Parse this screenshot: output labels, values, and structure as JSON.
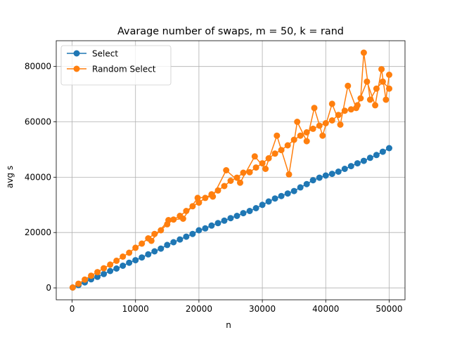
{
  "chart_data": {
    "type": "line",
    "title": "Avarage number of swaps, m = 50, k = rand",
    "xlabel": "n",
    "ylabel": "avg s",
    "xlim": [
      -2500,
      52500
    ],
    "ylim": [
      -4300,
      89300
    ],
    "grid": true,
    "legend_placement": "top-left",
    "x_ticks": [
      0,
      10000,
      20000,
      30000,
      40000,
      50000
    ],
    "x_tick_labels": [
      "0",
      "10000",
      "20000",
      "30000",
      "40000",
      "50000"
    ],
    "y_ticks": [
      0,
      20000,
      40000,
      60000,
      80000
    ],
    "y_tick_labels": [
      "0",
      "20000",
      "40000",
      "60000",
      "80000"
    ],
    "series": [
      {
        "name": "Select",
        "color": "#1f77b4",
        "marker": "circle",
        "x": [
          100,
          1000,
          2000,
          3000,
          4000,
          5000,
          6000,
          7000,
          8000,
          9000,
          10000,
          11000,
          12000,
          13000,
          14000,
          15000,
          16000,
          17000,
          18000,
          19000,
          20000,
          21000,
          22000,
          23000,
          24000,
          25000,
          26000,
          27000,
          28000,
          29000,
          30000,
          31000,
          32000,
          33000,
          34000,
          35000,
          36000,
          37000,
          38000,
          39000,
          40000,
          41000,
          42000,
          43000,
          44000,
          45000,
          46000,
          47000,
          48000,
          49000,
          50000
        ],
        "y": [
          150,
          1000,
          2000,
          3100,
          4000,
          5000,
          6100,
          7000,
          8000,
          9100,
          10000,
          11000,
          12100,
          13200,
          14200,
          15500,
          16500,
          17500,
          18500,
          19500,
          20800,
          21500,
          22500,
          23400,
          24300,
          25200,
          26000,
          27000,
          27800,
          28800,
          30000,
          31200,
          32300,
          33200,
          34100,
          35000,
          36300,
          37500,
          38900,
          39800,
          40600,
          41200,
          42000,
          43000,
          44000,
          45000,
          45900,
          47000,
          48000,
          49200,
          50500
        ]
      },
      {
        "name": "Random Select",
        "color": "#ff7f0e",
        "marker": "circle",
        "x": [
          100,
          1000,
          2000,
          3000,
          4000,
          5000,
          6000,
          7000,
          8000,
          9000,
          10000,
          11000,
          12000,
          13000,
          14000,
          15000,
          16000,
          17000,
          18000,
          19000,
          20000,
          21000,
          22000,
          23000,
          24000,
          25000,
          26000,
          27000,
          28000,
          29000,
          30000,
          31000,
          32000,
          33000,
          34000,
          35000,
          36000,
          37000,
          38000,
          39000,
          40000,
          41000,
          42000,
          43000,
          44000,
          45000,
          45500,
          46000,
          47000,
          48000,
          49000,
          50000
        ],
        "y": [
          150,
          1500,
          3000,
          4400,
          5700,
          7100,
          8400,
          9800,
          11300,
          12700,
          14500,
          16000,
          17900,
          19500,
          20800,
          23000,
          24700,
          26000,
          27800,
          29500,
          30800,
          32500,
          33800,
          35200,
          36800,
          38700,
          39800,
          41600,
          41800,
          43500,
          45000,
          46800,
          48500,
          49800,
          51500,
          53500,
          55000,
          56200,
          57500,
          58600,
          59500,
          60500,
          62500,
          64000,
          64500,
          66000,
          68500,
          85000,
          68000,
          72000,
          74500,
          72000
        ]
      },
      {
        "name": "",
        "color": "#ff7f0e",
        "marker": "circle",
        "x": [
          12500,
          15200,
          17500,
          19800,
          22200,
          24300,
          26500,
          28800,
          30500,
          32300,
          34200,
          35500,
          37000,
          38200,
          39500,
          41000,
          42300,
          43500,
          44800,
          46500,
          47800,
          48800,
          49500,
          50000
        ],
        "y": [
          17000,
          24500,
          25000,
          32500,
          33000,
          42500,
          38000,
          47500,
          43000,
          55000,
          41000,
          60000,
          53000,
          65000,
          55000,
          66500,
          59000,
          73000,
          65000,
          74500,
          66000,
          79000,
          68000,
          77000
        ]
      }
    ]
  }
}
